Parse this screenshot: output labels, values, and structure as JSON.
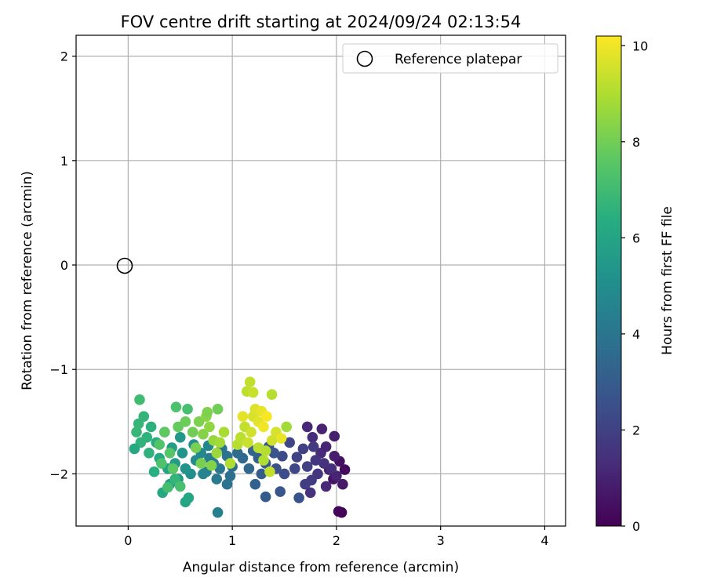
{
  "chart_data": {
    "type": "scatter",
    "title": "FOV centre drift starting at 2024/09/24 02:13:54",
    "xlabel": "Angular distance from reference (arcmin)",
    "ylabel": "Rotation from reference (arcmin)",
    "xlim": [
      -0.5,
      4.2
    ],
    "ylim": [
      -2.5,
      2.2
    ],
    "xticks": [
      "0",
      "1",
      "2",
      "3",
      "4"
    ],
    "yticks": [
      "−2",
      "−1",
      "0",
      "1",
      "2"
    ],
    "grid": true,
    "legend": {
      "placement": "top-right",
      "entries": [
        "Reference platepar"
      ]
    },
    "reference": {
      "x": 0,
      "y": 0
    },
    "colorbar": {
      "label": "Hours from first FF file",
      "range": [
        0,
        10.2
      ],
      "ticks": [
        "0",
        "2",
        "4",
        "6",
        "8",
        "10"
      ],
      "colormap": "viridis"
    },
    "points": [
      [
        2.05,
        -2.37,
        0.05
      ],
      [
        2.02,
        -2.36,
        0.15
      ],
      [
        2.08,
        -1.96,
        0.3
      ],
      [
        2.03,
        -1.88,
        0.45
      ],
      [
        1.97,
        -2.05,
        0.55
      ],
      [
        2.06,
        -2.1,
        0.7
      ],
      [
        1.98,
        -1.83,
        0.85
      ],
      [
        1.93,
        -1.96,
        0.95
      ],
      [
        2.0,
        -2.02,
        1.05
      ],
      [
        1.9,
        -2.12,
        1.15
      ],
      [
        1.85,
        -1.8,
        1.25
      ],
      [
        1.95,
        -1.95,
        1.35
      ],
      [
        1.88,
        -1.9,
        1.45
      ],
      [
        1.82,
        -2.0,
        1.55
      ],
      [
        1.8,
        -1.87,
        1.65
      ],
      [
        1.86,
        -1.57,
        1.0
      ],
      [
        1.98,
        -1.64,
        0.9
      ],
      [
        1.72,
        -1.55,
        1.2
      ],
      [
        1.77,
        -1.65,
        1.35
      ],
      [
        1.9,
        -1.74,
        1.1
      ],
      [
        1.76,
        -2.06,
        1.8
      ],
      [
        1.7,
        -2.1,
        1.9
      ],
      [
        1.68,
        -1.76,
        1.95
      ],
      [
        1.62,
        -1.84,
        2.05
      ],
      [
        1.55,
        -1.7,
        2.15
      ],
      [
        1.6,
        -1.95,
        2.2
      ],
      [
        1.72,
        -1.93,
        2.0
      ],
      [
        1.78,
        -1.74,
        1.75
      ],
      [
        1.64,
        -2.23,
        2.6
      ],
      [
        1.75,
        -2.18,
        1.5
      ],
      [
        1.48,
        -1.83,
        2.35
      ],
      [
        1.5,
        -2.0,
        2.4
      ],
      [
        1.42,
        -1.95,
        2.5
      ],
      [
        1.4,
        -1.8,
        2.7
      ],
      [
        1.35,
        -1.74,
        2.8
      ],
      [
        1.32,
        -1.9,
        2.9
      ],
      [
        1.28,
        -2.0,
        3.0
      ],
      [
        1.25,
        -1.85,
        3.1
      ],
      [
        1.22,
        -2.1,
        3.2
      ],
      [
        1.32,
        -2.22,
        3.0
      ],
      [
        1.46,
        -2.17,
        2.7
      ],
      [
        1.2,
        -1.78,
        3.3
      ],
      [
        1.16,
        -1.95,
        3.4
      ],
      [
        1.1,
        -1.85,
        3.5
      ],
      [
        1.05,
        -1.8,
        3.6
      ],
      [
        1.0,
        -1.93,
        3.7
      ],
      [
        0.98,
        -2.02,
        3.8
      ],
      [
        0.95,
        -1.83,
        3.9
      ],
      [
        0.9,
        -1.76,
        4.0
      ],
      [
        0.88,
        -1.95,
        4.1
      ],
      [
        0.85,
        -2.05,
        4.2
      ],
      [
        0.82,
        -1.9,
        4.3
      ],
      [
        0.78,
        -1.85,
        4.4
      ],
      [
        0.75,
        -1.98,
        4.5
      ],
      [
        0.72,
        -2.0,
        4.6
      ],
      [
        0.95,
        -2.1,
        3.9
      ],
      [
        0.86,
        -2.37,
        4.4
      ],
      [
        0.77,
        -1.73,
        4.7
      ],
      [
        0.7,
        -1.8,
        4.8
      ],
      [
        0.65,
        -1.87,
        4.9
      ],
      [
        0.63,
        -1.72,
        5.0
      ],
      [
        0.6,
        -2.0,
        5.1
      ],
      [
        0.55,
        -1.95,
        5.2
      ],
      [
        0.52,
        -1.8,
        5.3
      ],
      [
        0.5,
        -1.65,
        5.4
      ],
      [
        0.48,
        -2.05,
        5.5
      ],
      [
        0.45,
        -1.9,
        5.6
      ],
      [
        0.42,
        -1.75,
        5.7
      ],
      [
        0.4,
        -2.1,
        5.8
      ],
      [
        0.38,
        -1.95,
        5.9
      ],
      [
        0.35,
        -1.6,
        6.0
      ],
      [
        0.33,
        -2.18,
        6.1
      ],
      [
        0.3,
        -1.85,
        6.2
      ],
      [
        0.27,
        -1.7,
        6.3
      ],
      [
        0.25,
        -1.98,
        6.4
      ],
      [
        0.22,
        -1.55,
        6.5
      ],
      [
        0.2,
        -1.8,
        6.55
      ],
      [
        0.18,
        -1.65,
        6.6
      ],
      [
        0.15,
        -1.45,
        6.7
      ],
      [
        0.12,
        -1.7,
        6.65
      ],
      [
        0.1,
        -1.52,
        6.75
      ],
      [
        0.08,
        -1.6,
        6.8
      ],
      [
        0.06,
        -1.76,
        6.2
      ],
      [
        0.55,
        -2.27,
        6.0
      ],
      [
        0.58,
        -2.23,
        6.1
      ],
      [
        0.45,
        -2.05,
        6.7
      ],
      [
        0.38,
        -2.13,
        7.1
      ],
      [
        0.5,
        -2.12,
        7.2
      ],
      [
        0.32,
        -1.9,
        7.3
      ],
      [
        0.3,
        -1.72,
        7.4
      ],
      [
        0.4,
        -1.8,
        7.5
      ],
      [
        0.43,
        -1.95,
        7.6
      ],
      [
        0.35,
        -1.6,
        7.7
      ],
      [
        0.48,
        -1.55,
        7.8
      ],
      [
        0.55,
        -1.5,
        7.9
      ],
      [
        0.57,
        -1.38,
        7.2
      ],
      [
        0.46,
        -1.36,
        7.3
      ],
      [
        0.11,
        -1.29,
        7.0
      ],
      [
        0.62,
        -1.6,
        8.0
      ],
      [
        0.65,
        -1.75,
        8.1
      ],
      [
        0.68,
        -1.5,
        8.2
      ],
      [
        0.72,
        -1.62,
        8.3
      ],
      [
        0.75,
        -1.45,
        8.4
      ],
      [
        0.78,
        -1.55,
        8.5
      ],
      [
        0.82,
        -1.68,
        8.6
      ],
      [
        0.85,
        -1.8,
        8.7
      ],
      [
        0.88,
        -1.7,
        8.8
      ],
      [
        0.92,
        -1.6,
        8.9
      ],
      [
        0.86,
        -1.38,
        8.0
      ],
      [
        0.76,
        -1.41,
        8.2
      ],
      [
        0.7,
        -1.9,
        8.1
      ],
      [
        0.8,
        -1.92,
        8.3
      ],
      [
        0.98,
        -1.9,
        9.0
      ],
      [
        1.05,
        -1.72,
        9.1
      ],
      [
        1.08,
        -1.65,
        9.2
      ],
      [
        1.12,
        -1.55,
        9.3
      ],
      [
        1.15,
        -1.7,
        9.4
      ],
      [
        1.18,
        -1.6,
        9.5
      ],
      [
        1.2,
        -1.45,
        9.6
      ],
      [
        1.22,
        -1.38,
        9.7
      ],
      [
        1.25,
        -1.5,
        9.8
      ],
      [
        1.28,
        -1.4,
        9.9
      ],
      [
        1.3,
        -1.55,
        10.0
      ],
      [
        1.33,
        -1.45,
        10.1
      ],
      [
        1.1,
        -1.45,
        9.8
      ],
      [
        1.14,
        -1.21,
        9.2
      ],
      [
        1.2,
        -1.22,
        9.4
      ],
      [
        1.17,
        -1.12,
        9.3
      ],
      [
        1.38,
        -1.24,
        9.1
      ],
      [
        1.36,
        -1.98,
        9.3
      ],
      [
        1.3,
        -1.87,
        9.0
      ],
      [
        1.25,
        -1.75,
        9.2
      ],
      [
        1.42,
        -1.6,
        9.6
      ],
      [
        1.47,
        -1.66,
        9.9
      ],
      [
        1.52,
        -1.55,
        8.8
      ],
      [
        1.38,
        -1.68,
        9.5
      ],
      [
        1.32,
        -1.78,
        9.1
      ]
    ]
  }
}
